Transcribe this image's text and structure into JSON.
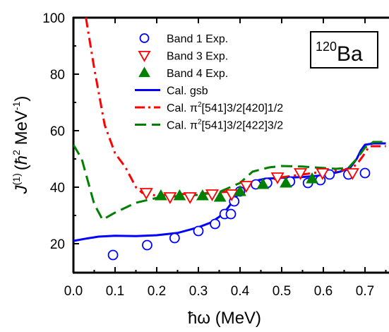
{
  "chart_data": {
    "type": "scatter",
    "xlabel": "ħω (MeV)",
    "ylabel_main": "J",
    "ylabel_sup": "(1)",
    "ylabel_units_pre": "(",
    "ylabel_units_hbar": "ħ",
    "ylabel_units_sup2": "2",
    "ylabel_units_mev": " MeV",
    "ylabel_units_supm1": "-1",
    "ylabel_units_post": ")",
    "xlim": [
      0.0,
      0.75
    ],
    "ylim": [
      10,
      100
    ],
    "xticks": [
      "0.0",
      "0.1",
      "0.2",
      "0.3",
      "0.4",
      "0.5",
      "0.6",
      "0.7"
    ],
    "yticks": [
      "20",
      "40",
      "60",
      "80",
      "100"
    ],
    "annotation": {
      "mass": "120",
      "element": "Ba"
    },
    "legend_position": "top-right",
    "series": [
      {
        "name": "Band 1 Exp.",
        "kind": "marker",
        "marker": "circle-open",
        "color": "#0000ff",
        "points": [
          [
            0.095,
            16
          ],
          [
            0.177,
            19.5
          ],
          [
            0.243,
            22
          ],
          [
            0.3,
            24.5
          ],
          [
            0.34,
            27
          ],
          [
            0.363,
            30.5
          ],
          [
            0.378,
            30.5
          ],
          [
            0.386,
            35
          ],
          [
            0.4,
            38.5
          ],
          [
            0.438,
            41
          ],
          [
            0.465,
            41.5
          ],
          [
            0.52,
            42
          ],
          [
            0.563,
            41.5
          ],
          [
            0.593,
            42.5
          ],
          [
            0.615,
            44.5
          ],
          [
            0.66,
            44.5
          ],
          [
            0.7,
            45
          ]
        ]
      },
      {
        "name": "Band 3 Exp.",
        "kind": "marker",
        "marker": "triangle-down-open",
        "color": "#ff0000",
        "points": [
          [
            0.175,
            38
          ],
          [
            0.232,
            36.5
          ],
          [
            0.28,
            36.5
          ],
          [
            0.333,
            37.5
          ],
          [
            0.38,
            37.5
          ],
          [
            0.415,
            40.5
          ],
          [
            0.49,
            43.5
          ],
          [
            0.545,
            45
          ],
          [
            0.598,
            45
          ],
          [
            0.67,
            45
          ]
        ]
      },
      {
        "name": "Band 4 Exp.",
        "kind": "marker",
        "marker": "triangle-up-filled",
        "color": "#008000",
        "points": [
          [
            0.21,
            37
          ],
          [
            0.255,
            37
          ],
          [
            0.31,
            37
          ],
          [
            0.352,
            36.5
          ],
          [
            0.4,
            38.5
          ],
          [
            0.455,
            41
          ],
          [
            0.51,
            41.5
          ],
          [
            0.573,
            43
          ]
        ]
      },
      {
        "name": "Cal. gsb",
        "kind": "line",
        "dash": "solid",
        "color": "#0000ff",
        "points": [
          [
            0.0,
            21
          ],
          [
            0.03,
            21.8
          ],
          [
            0.06,
            22.5
          ],
          [
            0.1,
            22.8
          ],
          [
            0.15,
            22.7
          ],
          [
            0.2,
            23
          ],
          [
            0.25,
            23.8
          ],
          [
            0.3,
            25.8
          ],
          [
            0.33,
            27.5
          ],
          [
            0.35,
            29.5
          ],
          [
            0.37,
            32.5
          ],
          [
            0.39,
            36.5
          ],
          [
            0.41,
            40
          ],
          [
            0.43,
            42
          ],
          [
            0.46,
            43
          ],
          [
            0.5,
            43.3
          ],
          [
            0.55,
            43.6
          ],
          [
            0.6,
            44.2
          ],
          [
            0.64,
            45.5
          ],
          [
            0.665,
            47
          ],
          [
            0.68,
            50
          ],
          [
            0.69,
            53
          ],
          [
            0.7,
            55
          ],
          [
            0.72,
            55.5
          ],
          [
            0.75,
            55.5
          ]
        ]
      },
      {
        "name": "Cal. π²[541]3/2[420]1/2",
        "legend_parts": [
          "Cal. π",
          "2",
          "[541]3/2[420]1/2"
        ],
        "kind": "line",
        "dash": "dashdot",
        "color": "#ff0000",
        "points": [
          [
            0.03,
            100
          ],
          [
            0.05,
            82
          ],
          [
            0.075,
            62
          ],
          [
            0.1,
            52
          ],
          [
            0.125,
            47
          ],
          [
            0.15,
            40
          ],
          [
            0.165,
            38
          ],
          [
            0.2,
            37
          ],
          [
            0.25,
            37.5
          ],
          [
            0.3,
            37.7
          ],
          [
            0.35,
            38.2
          ],
          [
            0.38,
            38.5
          ],
          [
            0.4,
            39
          ],
          [
            0.43,
            40.8
          ],
          [
            0.47,
            42.5
          ],
          [
            0.5,
            43.5
          ],
          [
            0.55,
            44.5
          ],
          [
            0.6,
            45.5
          ],
          [
            0.64,
            46
          ],
          [
            0.66,
            46.2
          ],
          [
            0.68,
            48
          ],
          [
            0.695,
            51
          ],
          [
            0.71,
            54.5
          ],
          [
            0.75,
            54.5
          ]
        ]
      },
      {
        "name": "Cal. π²[541]3/2[422]3/2",
        "legend_parts": [
          "Cal. π",
          "2",
          "[541]3/2[422]3/2"
        ],
        "kind": "line",
        "dash": "dash",
        "color": "#008000",
        "points": [
          [
            0.0,
            55
          ],
          [
            0.02,
            50
          ],
          [
            0.05,
            34
          ],
          [
            0.07,
            28.5
          ],
          [
            0.1,
            31
          ],
          [
            0.15,
            34.5
          ],
          [
            0.2,
            36.2
          ],
          [
            0.25,
            36.8
          ],
          [
            0.3,
            37.3
          ],
          [
            0.35,
            38.3
          ],
          [
            0.4,
            41.5
          ],
          [
            0.43,
            45.5
          ],
          [
            0.47,
            47
          ],
          [
            0.5,
            47.5
          ],
          [
            0.55,
            47.3
          ],
          [
            0.6,
            46.8
          ],
          [
            0.63,
            46.5
          ],
          [
            0.66,
            46.8
          ],
          [
            0.68,
            50
          ],
          [
            0.7,
            54
          ],
          [
            0.72,
            56
          ],
          [
            0.75,
            56
          ]
        ]
      }
    ]
  }
}
